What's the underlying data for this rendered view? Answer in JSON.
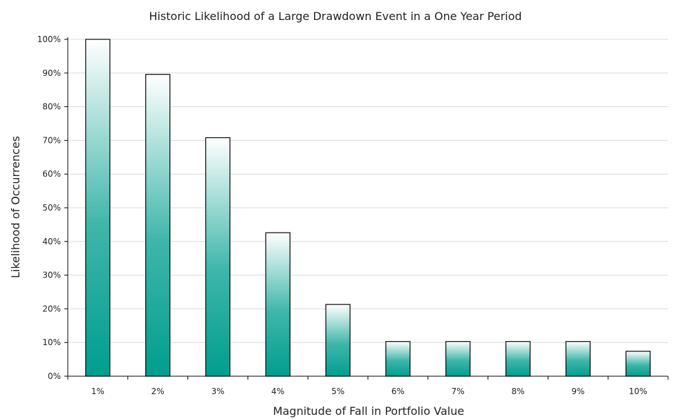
{
  "chart_data": {
    "type": "bar",
    "title": "Historic Likelihood of a Large Drawdown Event in a One Year Period",
    "xlabel": "Magnitude of Fall in Portfolio Value",
    "ylabel": "Likelihood of Occurrences",
    "categories": [
      "1%",
      "2%",
      "3%",
      "4%",
      "5%",
      "6%",
      "7%",
      "8%",
      "9%",
      "10%"
    ],
    "values": [
      100,
      89.6,
      70.8,
      42.6,
      21.3,
      10.3,
      10.3,
      10.3,
      10.3,
      7.4
    ],
    "ylim": [
      0,
      100
    ],
    "yticks": [
      0,
      10,
      20,
      30,
      40,
      50,
      60,
      70,
      80,
      90,
      100
    ],
    "ytick_labels": [
      "0%",
      "10%",
      "20%",
      "30%",
      "40%",
      "50%",
      "60%",
      "70%",
      "80%",
      "90%",
      "100%"
    ],
    "grid": true,
    "legend": "none",
    "colors": {
      "bar_top": "#ffffff",
      "bar_bottom": "#009e8e",
      "bar_outline": "#000000",
      "grid": "#d9d9d9"
    }
  }
}
